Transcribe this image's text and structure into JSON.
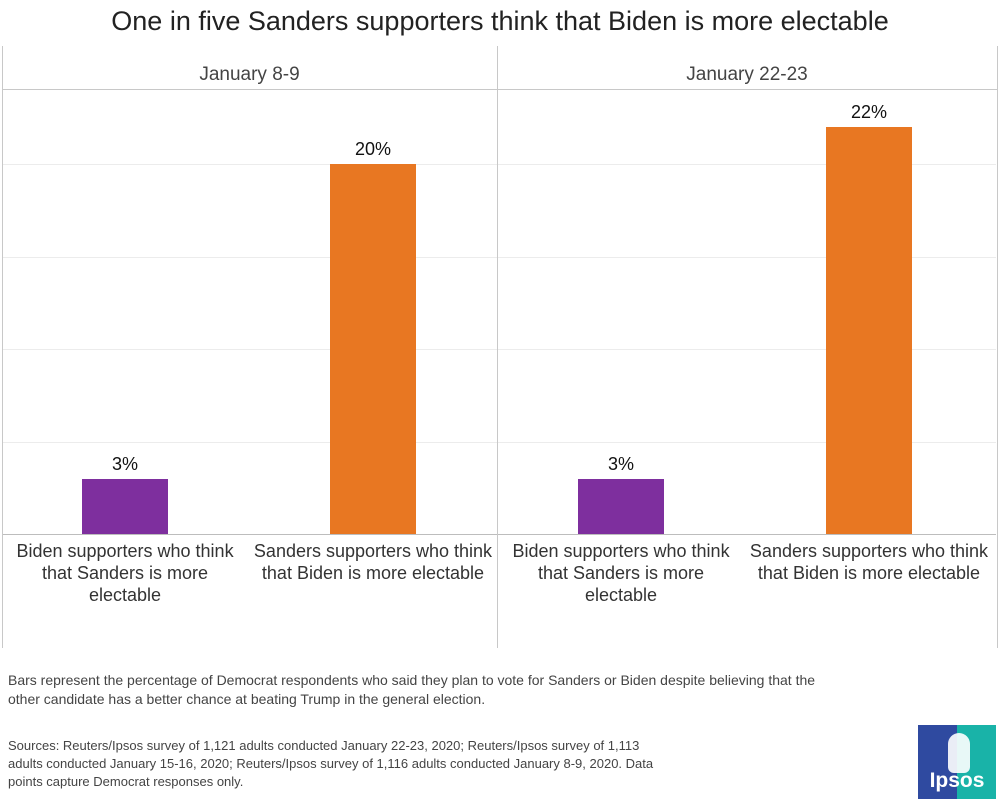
{
  "chart_data": {
    "type": "bar",
    "title": "One in five Sanders supporters think that Biden is more electable",
    "ylim": [
      0,
      24
    ],
    "panels": [
      {
        "name": "January 8-9",
        "categories": [
          "Biden supporters who think that Sanders is more electable",
          "Sanders supporters who think that Biden is more electable"
        ],
        "values": [
          3,
          20
        ],
        "labels": [
          "3%",
          "20%"
        ],
        "colors": [
          "#7e2f9e",
          "#e87722"
        ]
      },
      {
        "name": "January 22-23",
        "categories": [
          "Biden supporters who think that Sanders is more electable",
          "Sanders supporters who think that Biden is more electable"
        ],
        "values": [
          3,
          22
        ],
        "labels": [
          "3%",
          "22%"
        ],
        "colors": [
          "#7e2f9e",
          "#e87722"
        ]
      }
    ]
  },
  "footnote": "Bars represent the percentage of Democrat respondents who said they plan to vote for Sanders or Biden despite believing that the other candidate has a better chance at beating Trump in the general election.",
  "sources": "Sources: Reuters/Ipsos survey of 1,121 adults conducted January 22-23, 2020; Reuters/Ipsos survey of 1,113 adults conducted January 15-16, 2020; Reuters/Ipsos survey of 1,116 adults conducted January 8-9, 2020. Data points capture Democrat responses only.",
  "logo": {
    "text": "Ipsos"
  }
}
